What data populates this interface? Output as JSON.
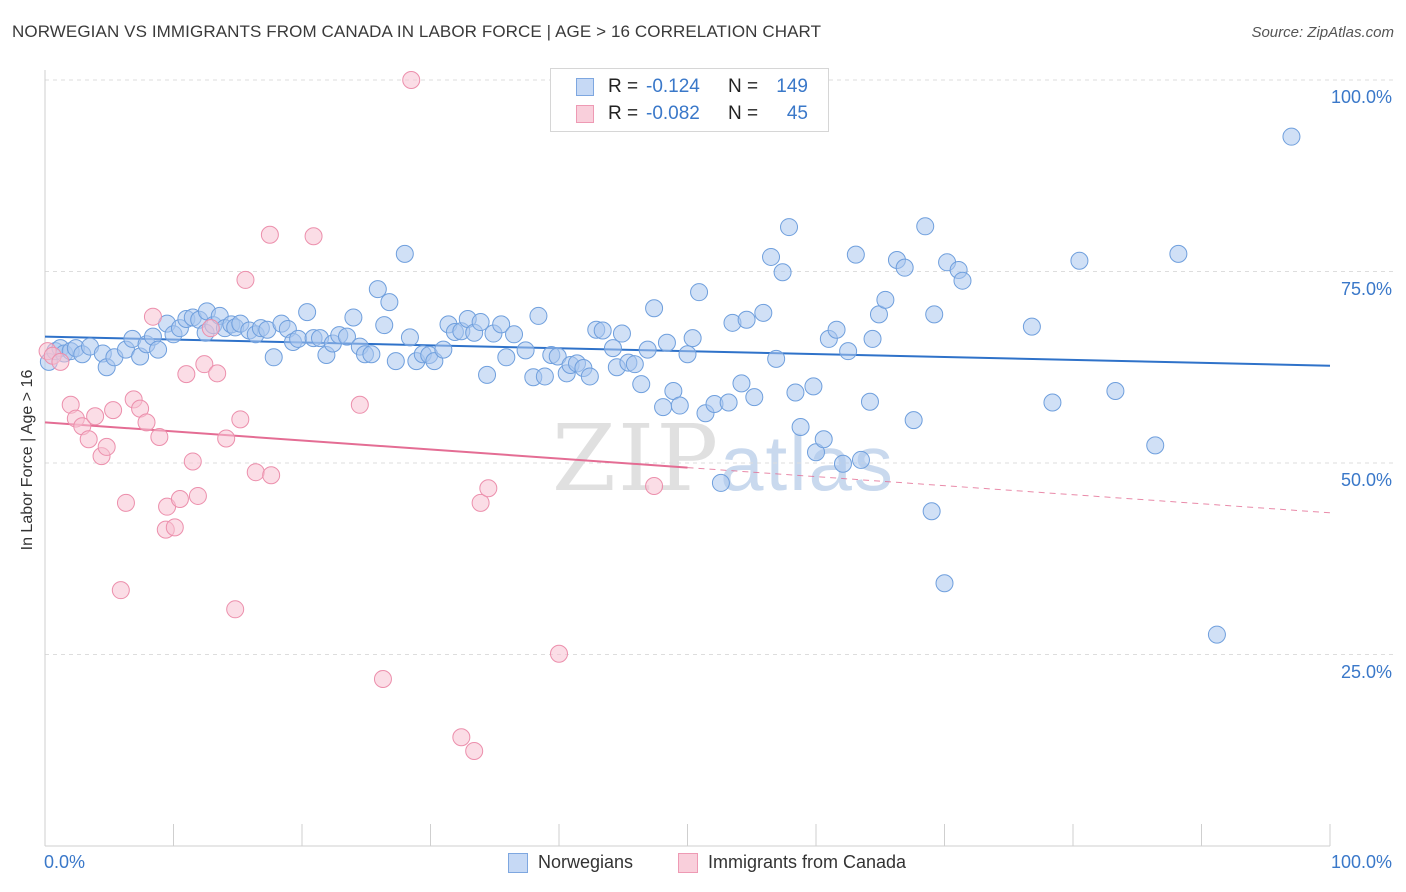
{
  "header": {
    "title": "NORWEGIAN VS IMMIGRANTS FROM CANADA IN LABOR FORCE | AGE > 16 CORRELATION CHART",
    "source": "Source: ZipAtlas.com"
  },
  "watermark": {
    "zip": "ZIP",
    "atlas": "atlas"
  },
  "legend": {
    "rows": [
      {
        "r_label": "R =",
        "r_value": "-0.124",
        "n_label": "N =",
        "n_value": "149",
        "color": "#a9c6ef"
      },
      {
        "r_label": "R =",
        "r_value": "-0.082",
        "n_label": "N =",
        "n_value": "45",
        "color": "#f5b8ca"
      }
    ]
  },
  "bottom_legend": {
    "series1": "Norwegians",
    "series2": "Immigrants from Canada"
  },
  "colors": {
    "blue_fill": "#a9c6ef",
    "blue_stroke": "#6f9fdd",
    "blue_line": "#2f72c9",
    "pink_fill": "#f7c1d1",
    "pink_stroke": "#ec8fac",
    "pink_line": "#e46d94",
    "grid": "#dddddd",
    "tick_text": "#3a78c9"
  },
  "chart_data": {
    "type": "scatter",
    "title": "NORWEGIAN VS IMMIGRANTS FROM CANADA IN LABOR FORCE | AGE > 16 CORRELATION CHART",
    "xlabel": "",
    "ylabel": "In Labor Force | Age > 16",
    "xlim": [
      0,
      100
    ],
    "ylim": [
      0,
      108
    ],
    "x_tick_labels": [
      "0.0%",
      "100.0%"
    ],
    "y_ticks": [
      25,
      50,
      75,
      100
    ],
    "y_tick_labels": [
      "25.0%",
      "50.0%",
      "75.0%",
      "100.0%"
    ],
    "grid": true,
    "legend_placement": "top-center",
    "series": [
      {
        "name": "Norwegians",
        "r": -0.124,
        "n": 149,
        "trend": {
          "x0": 0,
          "y0": 66.5,
          "x1": 100,
          "y1": 62.7,
          "dashed_from": null
        },
        "points": [
          [
            0.3,
            63.2
          ],
          [
            0.8,
            64.6
          ],
          [
            1.2,
            65.0
          ],
          [
            1.5,
            64.3
          ],
          [
            2.0,
            64.6
          ],
          [
            2.4,
            65.0
          ],
          [
            2.9,
            64.2
          ],
          [
            3.5,
            65.2
          ],
          [
            4.5,
            64.3
          ],
          [
            4.8,
            62.5
          ],
          [
            5.4,
            63.8
          ],
          [
            6.3,
            64.8
          ],
          [
            6.8,
            66.2
          ],
          [
            7.4,
            63.9
          ],
          [
            7.9,
            65.5
          ],
          [
            8.4,
            66.5
          ],
          [
            8.8,
            64.8
          ],
          [
            9.5,
            68.2
          ],
          [
            10.0,
            66.8
          ],
          [
            10.5,
            67.6
          ],
          [
            11.0,
            68.8
          ],
          [
            11.5,
            69.0
          ],
          [
            12.0,
            68.7
          ],
          [
            12.5,
            67.0
          ],
          [
            12.6,
            69.8
          ],
          [
            13.1,
            68.0
          ],
          [
            13.6,
            69.2
          ],
          [
            14.0,
            67.6
          ],
          [
            14.5,
            68.1
          ],
          [
            14.8,
            67.7
          ],
          [
            15.2,
            68.2
          ],
          [
            15.9,
            67.3
          ],
          [
            16.4,
            66.8
          ],
          [
            16.8,
            67.6
          ],
          [
            17.3,
            67.4
          ],
          [
            17.8,
            63.8
          ],
          [
            18.4,
            68.2
          ],
          [
            18.9,
            67.5
          ],
          [
            19.3,
            65.8
          ],
          [
            19.7,
            66.2
          ],
          [
            20.4,
            69.7
          ],
          [
            20.9,
            66.3
          ],
          [
            21.4,
            66.3
          ],
          [
            21.9,
            64.1
          ],
          [
            22.4,
            65.6
          ],
          [
            22.9,
            66.7
          ],
          [
            23.5,
            66.5
          ],
          [
            24.0,
            69.0
          ],
          [
            24.5,
            65.2
          ],
          [
            24.9,
            64.2
          ],
          [
            25.4,
            64.2
          ],
          [
            25.9,
            72.7
          ],
          [
            26.4,
            68.0
          ],
          [
            26.8,
            71.0
          ],
          [
            27.3,
            63.3
          ],
          [
            28.0,
            77.3
          ],
          [
            28.4,
            66.4
          ],
          [
            28.9,
            63.3
          ],
          [
            29.4,
            64.2
          ],
          [
            29.9,
            64.1
          ],
          [
            30.3,
            63.3
          ],
          [
            31.0,
            64.8
          ],
          [
            31.4,
            68.1
          ],
          [
            31.9,
            67.1
          ],
          [
            32.4,
            67.2
          ],
          [
            32.9,
            68.8
          ],
          [
            33.4,
            67.0
          ],
          [
            33.9,
            68.4
          ],
          [
            34.4,
            61.5
          ],
          [
            34.9,
            66.9
          ],
          [
            35.5,
            68.1
          ],
          [
            35.9,
            63.8
          ],
          [
            36.5,
            66.8
          ],
          [
            37.4,
            64.7
          ],
          [
            38.0,
            61.2
          ],
          [
            38.4,
            69.2
          ],
          [
            38.9,
            61.3
          ],
          [
            39.4,
            64.1
          ],
          [
            39.9,
            63.9
          ],
          [
            40.6,
            61.7
          ],
          [
            40.9,
            62.8
          ],
          [
            41.4,
            63.0
          ],
          [
            41.9,
            62.4
          ],
          [
            42.4,
            61.3
          ],
          [
            42.9,
            67.4
          ],
          [
            43.4,
            67.3
          ],
          [
            44.2,
            65.0
          ],
          [
            44.5,
            62.5
          ],
          [
            44.9,
            66.9
          ],
          [
            45.4,
            63.1
          ],
          [
            45.9,
            62.9
          ],
          [
            46.4,
            60.3
          ],
          [
            46.9,
            64.8
          ],
          [
            47.4,
            70.2
          ],
          [
            48.1,
            57.3
          ],
          [
            48.4,
            65.7
          ],
          [
            48.9,
            59.4
          ],
          [
            49.4,
            57.5
          ],
          [
            50.0,
            64.2
          ],
          [
            50.4,
            66.3
          ],
          [
            50.9,
            72.3
          ],
          [
            51.4,
            56.5
          ],
          [
            52.1,
            57.7
          ],
          [
            52.6,
            47.4
          ],
          [
            53.2,
            57.9
          ],
          [
            53.5,
            68.3
          ],
          [
            54.2,
            60.4
          ],
          [
            54.6,
            68.7
          ],
          [
            55.2,
            58.6
          ],
          [
            55.9,
            69.6
          ],
          [
            56.5,
            76.9
          ],
          [
            56.9,
            63.6
          ],
          [
            57.4,
            74.9
          ],
          [
            57.9,
            80.8
          ],
          [
            58.4,
            59.2
          ],
          [
            58.8,
            54.7
          ],
          [
            59.8,
            60.0
          ],
          [
            60.0,
            51.4
          ],
          [
            60.6,
            53.1
          ],
          [
            61.0,
            66.2
          ],
          [
            61.6,
            67.4
          ],
          [
            62.1,
            49.9
          ],
          [
            62.5,
            64.6
          ],
          [
            63.1,
            77.2
          ],
          [
            63.5,
            50.4
          ],
          [
            64.2,
            58.0
          ],
          [
            64.4,
            66.2
          ],
          [
            64.9,
            69.4
          ],
          [
            65.4,
            71.3
          ],
          [
            66.3,
            76.5
          ],
          [
            66.9,
            75.5
          ],
          [
            67.6,
            55.6
          ],
          [
            68.5,
            80.9
          ],
          [
            69.0,
            43.7
          ],
          [
            69.2,
            69.4
          ],
          [
            70.0,
            34.3
          ],
          [
            70.2,
            76.2
          ],
          [
            71.1,
            75.2
          ],
          [
            71.4,
            73.8
          ],
          [
            76.8,
            67.8
          ],
          [
            78.4,
            57.9
          ],
          [
            80.5,
            76.4
          ],
          [
            83.3,
            59.4
          ],
          [
            86.4,
            52.3
          ],
          [
            88.2,
            77.3
          ],
          [
            91.2,
            27.6
          ],
          [
            97.0,
            92.6
          ]
        ]
      },
      {
        "name": "Immigrants from Canada",
        "r": -0.082,
        "n": 45,
        "trend": {
          "x0": 0,
          "y0": 55.3,
          "x1": 100,
          "y1": 43.5,
          "dashed_from": 50
        },
        "points": [
          [
            0.2,
            64.6
          ],
          [
            0.6,
            64.0
          ],
          [
            1.2,
            63.2
          ],
          [
            2.0,
            57.6
          ],
          [
            2.4,
            55.8
          ],
          [
            2.9,
            54.8
          ],
          [
            3.4,
            53.1
          ],
          [
            3.9,
            56.1
          ],
          [
            4.4,
            50.9
          ],
          [
            4.8,
            52.1
          ],
          [
            5.3,
            56.9
          ],
          [
            5.9,
            33.4
          ],
          [
            6.3,
            44.8
          ],
          [
            6.9,
            58.3
          ],
          [
            7.4,
            57.1
          ],
          [
            7.9,
            55.3
          ],
          [
            8.4,
            69.1
          ],
          [
            8.9,
            53.4
          ],
          [
            9.4,
            41.3
          ],
          [
            9.5,
            44.3
          ],
          [
            10.1,
            41.6
          ],
          [
            10.5,
            45.3
          ],
          [
            11.0,
            61.6
          ],
          [
            11.5,
            50.2
          ],
          [
            11.9,
            45.7
          ],
          [
            12.4,
            62.9
          ],
          [
            12.9,
            67.6
          ],
          [
            13.4,
            61.7
          ],
          [
            14.1,
            53.2
          ],
          [
            14.8,
            30.9
          ],
          [
            15.2,
            55.7
          ],
          [
            15.6,
            73.9
          ],
          [
            16.4,
            48.8
          ],
          [
            17.5,
            79.8
          ],
          [
            17.6,
            48.4
          ],
          [
            20.9,
            79.6
          ],
          [
            24.5,
            57.6
          ],
          [
            26.3,
            21.8
          ],
          [
            28.5,
            100.0
          ],
          [
            32.4,
            14.2
          ],
          [
            33.4,
            12.4
          ],
          [
            33.9,
            44.8
          ],
          [
            34.5,
            46.7
          ],
          [
            40.0,
            25.1
          ],
          [
            47.4,
            47.0
          ]
        ]
      }
    ]
  }
}
